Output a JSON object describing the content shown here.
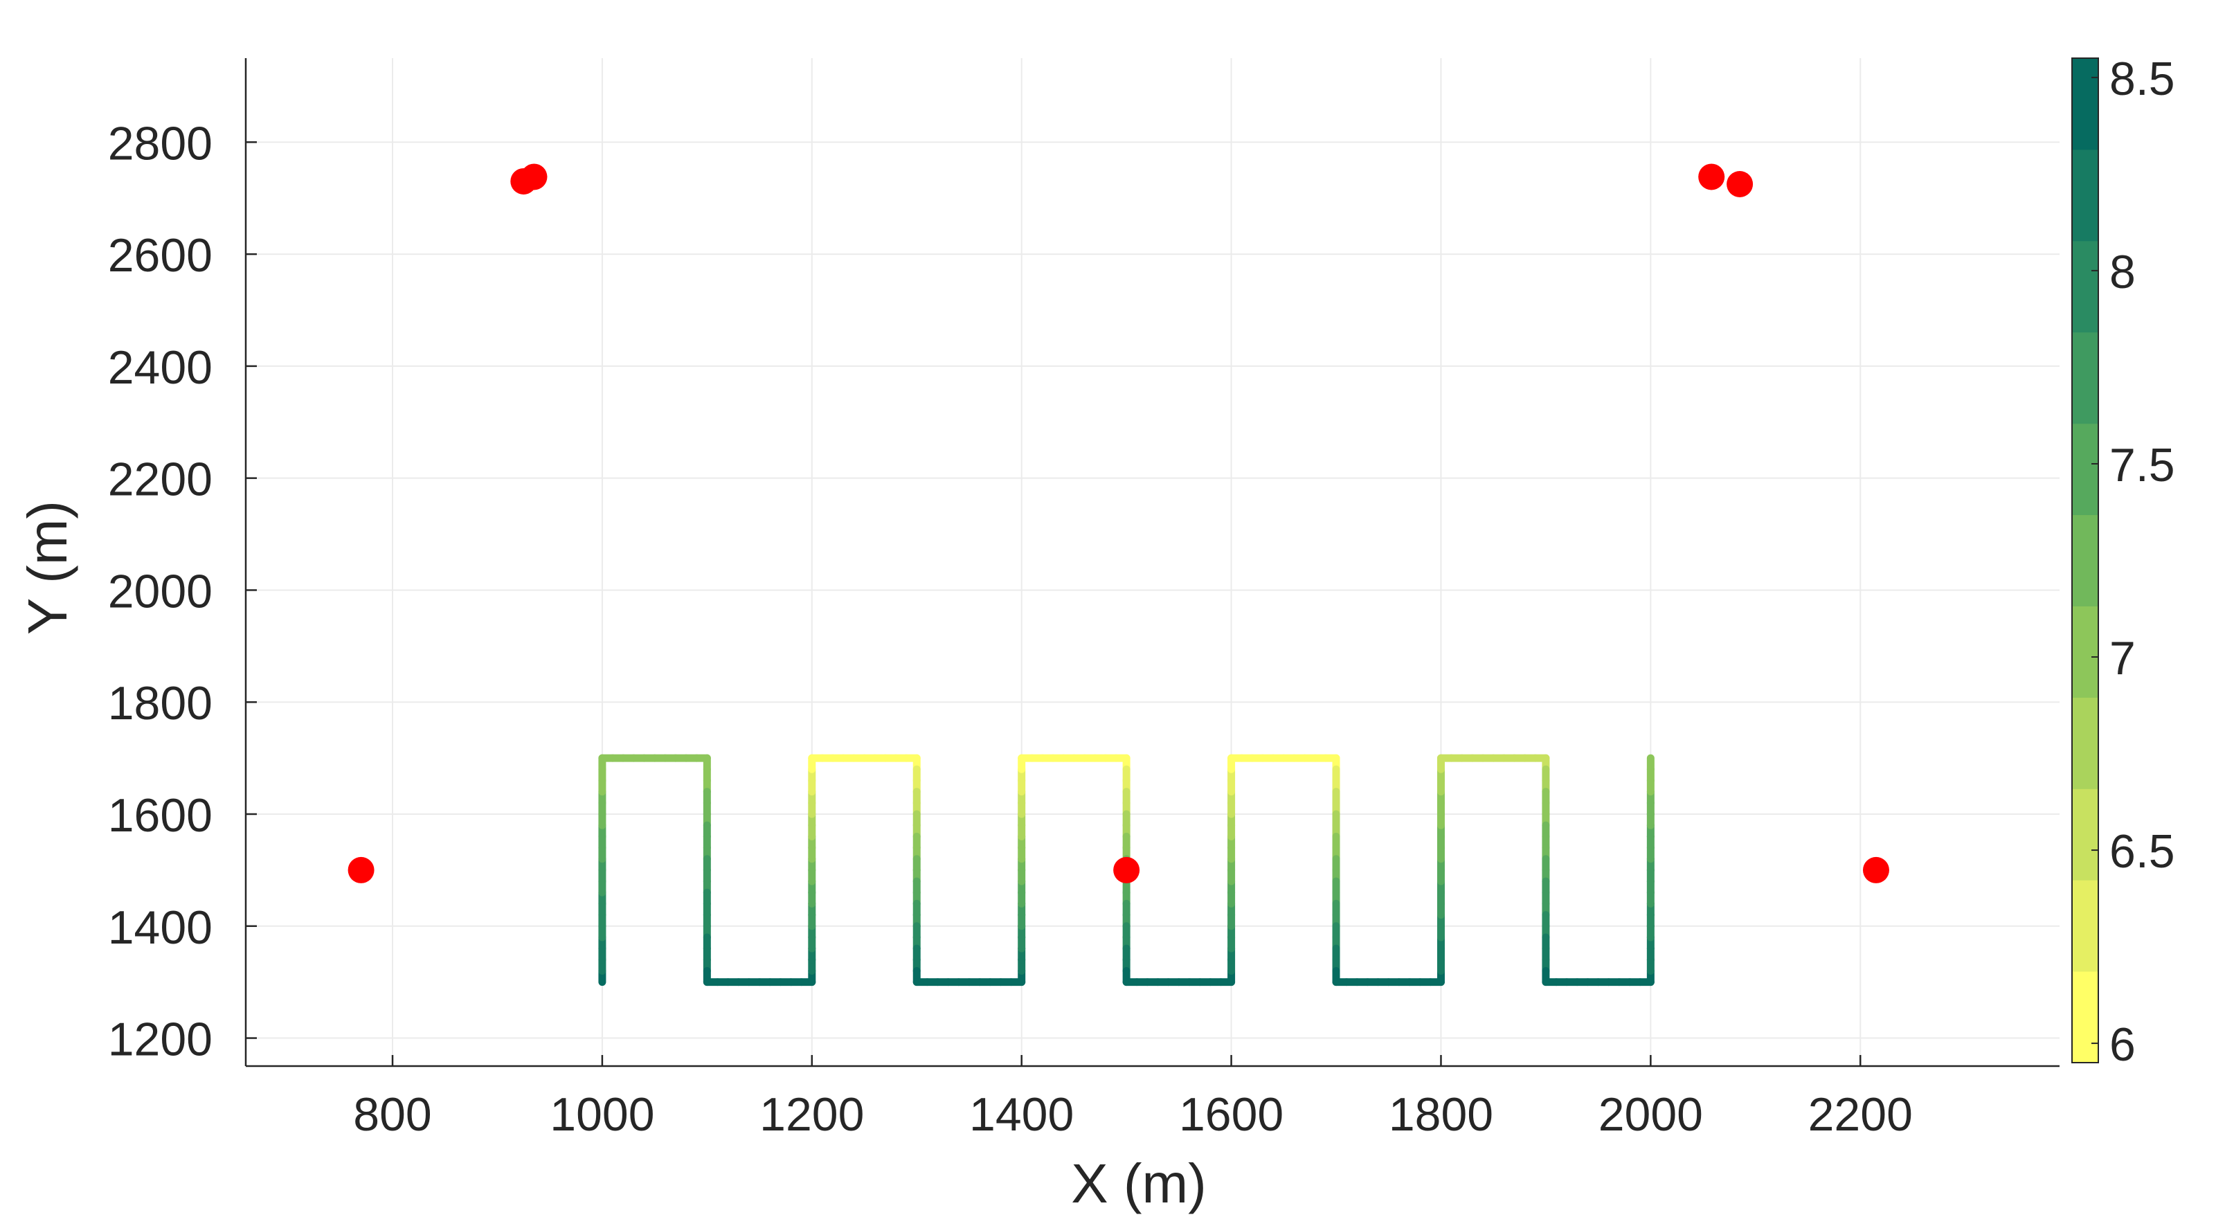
{
  "chart_data": {
    "type": "scatter",
    "xlabel": "X (m)",
    "ylabel": "Y (m)",
    "xlim": [
      660,
      2390
    ],
    "ylim": [
      1150,
      2950
    ],
    "xticks": [
      "800",
      "1000",
      "1200",
      "1400",
      "1600",
      "1800",
      "2000",
      "2200"
    ],
    "xtick_values": [
      800,
      1000,
      1200,
      1400,
      1600,
      1800,
      2000,
      2200
    ],
    "yticks": [
      "1200",
      "1400",
      "1600",
      "1800",
      "2000",
      "2200",
      "2400",
      "2600",
      "2800"
    ],
    "ytick_values": [
      1200,
      1400,
      1600,
      1800,
      2000,
      2200,
      2400,
      2600,
      2800
    ],
    "grid": true,
    "markers": {
      "color": "#ff0000",
      "points": [
        {
          "x": 770,
          "y": 1500
        },
        {
          "x": 1500,
          "y": 1500
        },
        {
          "x": 2215,
          "y": 1500
        },
        {
          "x": 925,
          "y": 2730
        },
        {
          "x": 935,
          "y": 2738
        },
        {
          "x": 2058,
          "y": 2738
        },
        {
          "x": 2085,
          "y": 2725
        }
      ]
    },
    "trajectory": {
      "x_start": 1000,
      "x_step": 100,
      "leg_count": 10,
      "y_low": 1300,
      "y_high": 1700,
      "start_y": 1300,
      "end_y": 1700,
      "color_start_value": 8.4,
      "color_end_value": 6.9,
      "turn_value_low": 8.4,
      "turn_values_high": [
        6.95,
        6.1,
        6.05,
        6.05,
        6.6
      ]
    },
    "colorbar": {
      "min": 5.95,
      "max": 8.55,
      "ticks": [
        "6",
        "6.5",
        "7",
        "7.5",
        "8",
        "8.5"
      ],
      "tick_values": [
        6,
        6.5,
        7,
        7.5,
        8,
        8.5
      ],
      "colors": [
        "#ffff66",
        "#e5ef63",
        "#c8e160",
        "#aad35c",
        "#8dc65a",
        "#71b85b",
        "#56a95d",
        "#3f9a60",
        "#2a8b62",
        "#177b62",
        "#066b60"
      ]
    },
    "colors": {
      "axis": "#262626",
      "grid": "#ebebeb"
    }
  }
}
